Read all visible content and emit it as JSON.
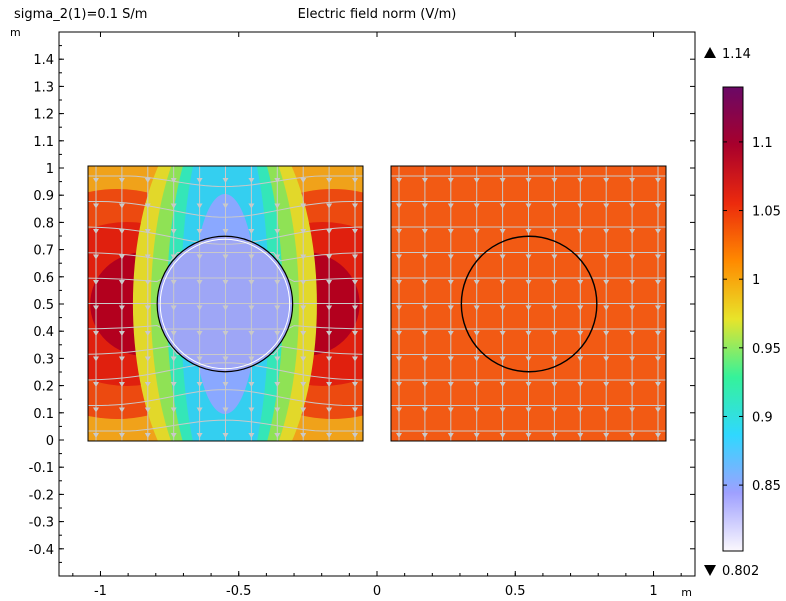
{
  "header": {
    "parameter_label": "sigma_2(1)=0.1 S/m",
    "plot_title": "Electric field norm (V/m)"
  },
  "chart_data": {
    "type": "heatmap",
    "title": "Electric field norm (V/m)",
    "subtitle": "sigma_2(1)=0.1 S/m",
    "xlabel": "m",
    "ylabel": "m",
    "xlim": [
      -1.15,
      1.15
    ],
    "ylim": [
      -0.5,
      1.5
    ],
    "x_ticks": [
      {
        "value": -1,
        "label": "-1"
      },
      {
        "value": -0.5,
        "label": "-0.5"
      },
      {
        "value": 0,
        "label": "0"
      },
      {
        "value": 0.5,
        "label": "0.5"
      },
      {
        "value": 1,
        "label": "1"
      }
    ],
    "y_ticks": [
      {
        "value": 1.4,
        "label": "1.4"
      },
      {
        "value": 1.3,
        "label": "1.3"
      },
      {
        "value": 1.2,
        "label": "1.2"
      },
      {
        "value": 1.1,
        "label": "1.1"
      },
      {
        "value": 1.0,
        "label": "1"
      },
      {
        "value": 0.9,
        "label": "0.9"
      },
      {
        "value": 0.8,
        "label": "0.8"
      },
      {
        "value": 0.7,
        "label": "0.7"
      },
      {
        "value": 0.6,
        "label": "0.6"
      },
      {
        "value": 0.5,
        "label": "0.5"
      },
      {
        "value": 0.4,
        "label": "0.4"
      },
      {
        "value": 0.3,
        "label": "0.3"
      },
      {
        "value": 0.2,
        "label": "0.2"
      },
      {
        "value": 0.1,
        "label": "0.1"
      },
      {
        "value": 0.0,
        "label": "0"
      },
      {
        "value": -0.1,
        "label": "-0.1"
      },
      {
        "value": -0.2,
        "label": "-0.2"
      },
      {
        "value": -0.3,
        "label": "-0.3"
      },
      {
        "value": -0.4,
        "label": "-0.4"
      }
    ],
    "domains": [
      {
        "name": "left-domain",
        "x_range": [
          -1.05,
          -0.05
        ],
        "y_range": [
          0,
          1
        ],
        "inclusion": {
          "cx": -0.55,
          "cy": 0.5,
          "r": 0.245,
          "field": 0.81
        }
      },
      {
        "name": "right-domain",
        "x_range": [
          0.05,
          1.05
        ],
        "y_range": [
          0,
          1
        ],
        "inclusion": {
          "cx": 0.55,
          "cy": 0.5,
          "r": 0.245,
          "field": 1.0
        }
      }
    ],
    "background_field": 1.0,
    "colorbar": {
      "max_label": "1.14",
      "min_label": "0.802",
      "max": 1.14,
      "min": 0.802,
      "ticks": [
        {
          "value": 1.1,
          "label": "1.1"
        },
        {
          "value": 1.05,
          "label": "1.05"
        },
        {
          "value": 1.0,
          "label": "1"
        },
        {
          "value": 0.95,
          "label": "0.95"
        },
        {
          "value": 0.9,
          "label": "0.9"
        },
        {
          "value": 0.85,
          "label": "0.85"
        }
      ],
      "colors": [
        "#fbf8fd",
        "#9fa0ff",
        "#30d8ff",
        "#35f29a",
        "#e8e42a",
        "#ff8a00",
        "#ec2a0d",
        "#a8002c",
        "#6a0866"
      ]
    },
    "colors": {
      "arrows": "#c9c9c9",
      "outline": "#000000",
      "axis": "#000000"
    },
    "grid": false,
    "legend": "right"
  }
}
